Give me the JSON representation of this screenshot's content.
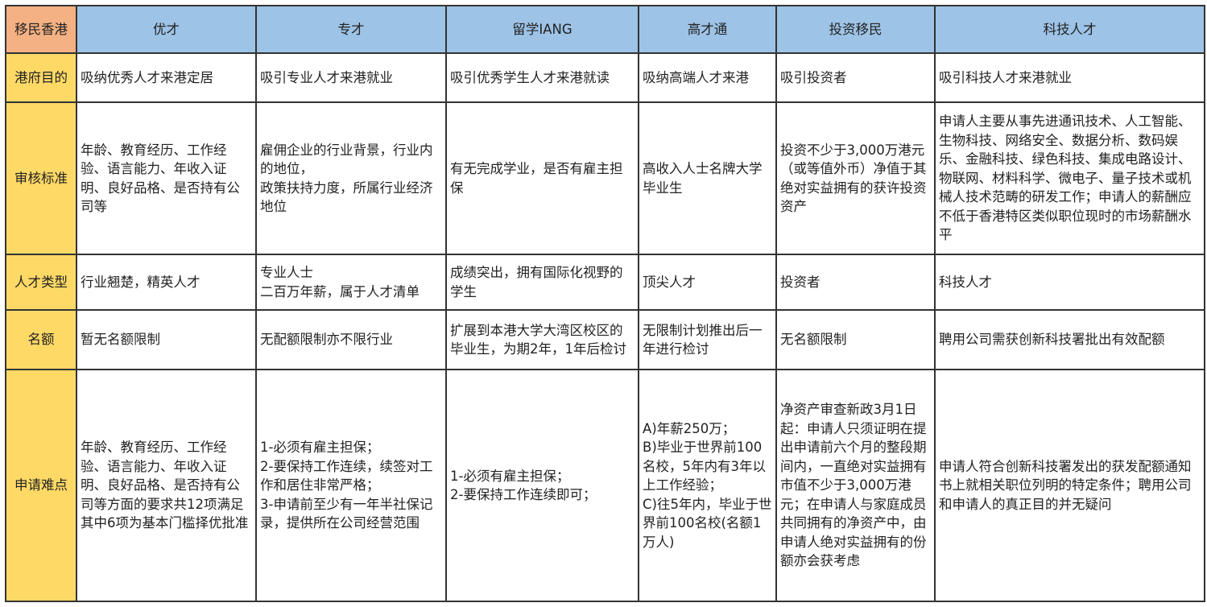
{
  "corner": "移民香港",
  "columns": [
    "优才",
    "专才",
    "留学IANG",
    "高才通",
    "投资移民",
    "科技人才"
  ],
  "rows": [
    {
      "label": "港府目的",
      "cells": [
        "吸纳优秀人才来港定居",
        "吸引专业人才来港就业",
        "吸引优秀学生人才来港就读",
        "吸纳高端人才来港",
        "吸引投资者",
        "吸引科技人才来港就业"
      ]
    },
    {
      "label": "审核标准",
      "cells": [
        "年龄、教育经历、工作经验、语言能力、年收入证明、良好品格、是否持有公司等",
        "雇佣企业的行业背景，行业内的地位，\n政策扶持力度，所属行业经济 地位",
        "有无完成学业，是否有雇主担保",
        "高收入人士名牌大学毕业生",
        "投资不少于3,000万港元（或等值外币）净值于其绝对实益拥有的获许投资资产",
        "申请人主要从事先进通讯技术、人工智能、生物科技、网络安全、数据分析、数码娱乐、金融科技、绿色科技、集成电路设计、物联网、材料科学、微电子、量子技术或机械人技术范畴的研发工作；申请人的薪酬应不低于香港特区类似职位现时的市场薪酬水平"
      ]
    },
    {
      "label": "人才类型",
      "cells": [
        "行业翘楚，精英人才",
        "专业人士\n二百万年薪，属于人才清单",
        "成绩突出，拥有国际化视野的学生",
        "顶尖人才",
        "投资者",
        "科技人才"
      ]
    },
    {
      "label": "名额",
      "cells": [
        "暂无名额限制",
        "无配额限制亦不限行业",
        "扩展到本港大学大湾区校区的毕业生，为期2年，1年后检讨",
        "无限制计划推出后一年进行检讨",
        "无名额限制",
        "聘用公司需获创新科技署批出有效配额"
      ]
    },
    {
      "label": "申请难点",
      "cells": [
        "年龄、教育经历、工作经验、语言能力、年收入证明、良好品格、是否持有公司等方面的要求共12项满足其中6项为基本门槛择优批准",
        "1-必须有雇主担保；\n2-要保持工作连续，续签对工作和居住非常严格；\n3-申请前至少有一年半社保记录，提供所在公司经营范围",
        "1-必须有雇主担保；\n2-要保持工作连续即可；",
        "A)年薪250万；\nB)毕业于世界前100名校，5年内有3年以上工作经验；\nC)往5年内，毕业于世界前100名校(名额1万人)",
        "净资产审查新政3月1日起：申请人只须证明在提出申请前六个月的整段期间内，一直绝对实益拥有市值不少于3,000万港元；在申请人与家庭成员共同拥有的净资产中，由申请人绝对实益拥有的份额亦会获考虑",
        "申请人符合创新科技署发出的获发配额通知书上就相关职位列明的特定条件；聘用公司和申请人的真正目的并无疑问"
      ]
    }
  ],
  "colors": {
    "corner": "#f4b183",
    "header": "#9dc3e6",
    "rowhead": "#ffd966"
  }
}
